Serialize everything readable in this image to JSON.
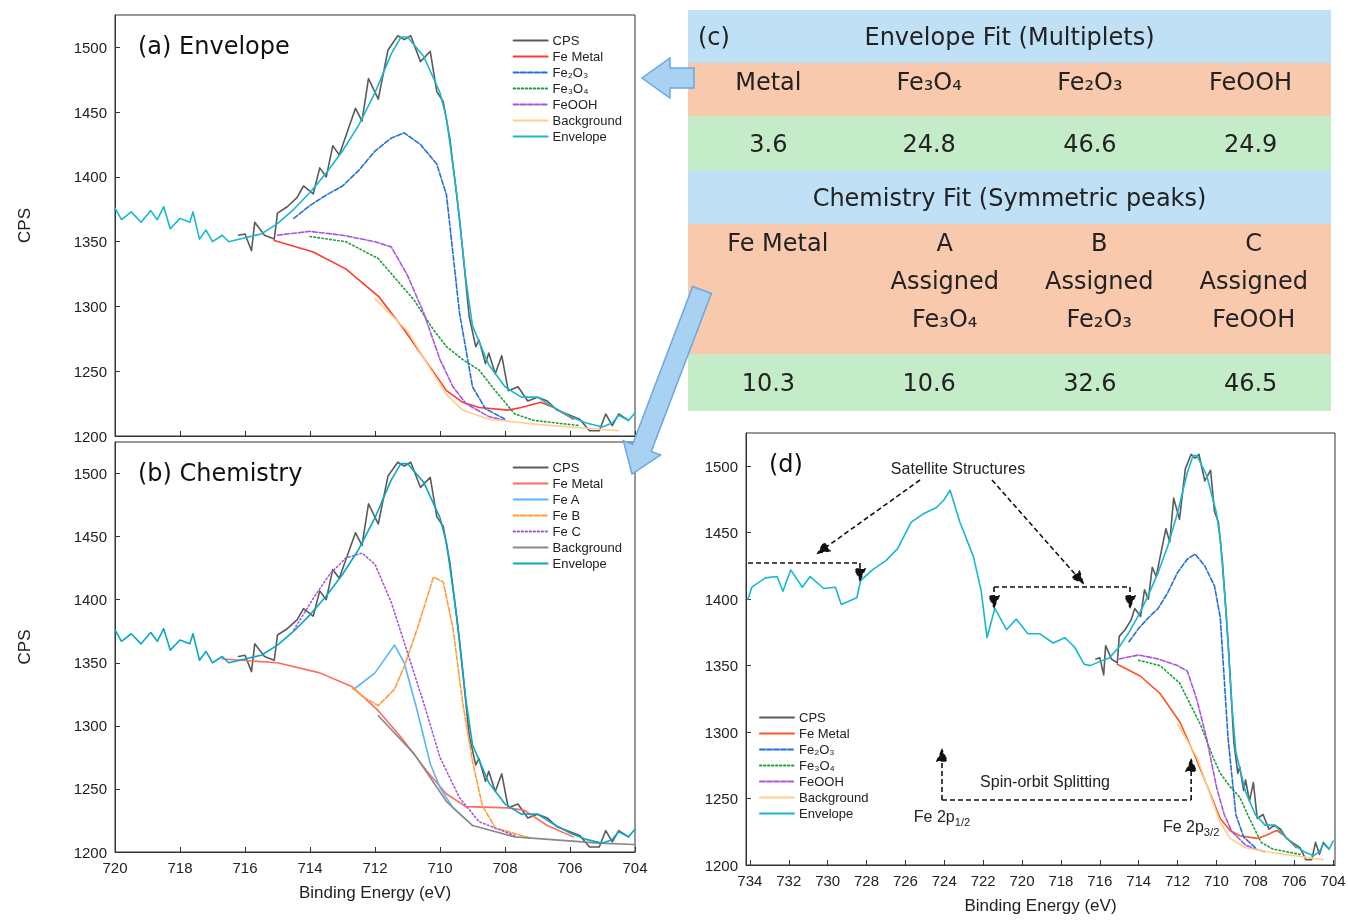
{
  "chart_data": [
    {
      "type": "line",
      "title": "(a) Envelope",
      "ylabel": "CPS",
      "xlim": [
        720,
        704
      ],
      "ylim": [
        1200,
        1525
      ],
      "xticks": [
        720,
        718,
        716,
        714,
        712,
        710,
        708,
        706,
        704
      ],
      "yticks": [
        1200,
        1250,
        1300,
        1350,
        1400,
        1450,
        1500
      ],
      "tick_labels": "y",
      "legend": "top right",
      "series": [
        {
          "name": "CPS",
          "color": "#5a5a5a",
          "line_style": "solid",
          "x": [
            716.2,
            716,
            715.8,
            715.7,
            715.4,
            715.1,
            715,
            714.7,
            714.4,
            714.2,
            713.9,
            713.7,
            713.5,
            713.3,
            713.1,
            712.6,
            712.4,
            712.2,
            711.9,
            711.6,
            711.3,
            711.1,
            710.9,
            710.6,
            710.3,
            710.1,
            709.9,
            709.7,
            709.4,
            709.1,
            708.9,
            708.8,
            708.6,
            708.5,
            708.3,
            708.1,
            707.9,
            707.6,
            707.3,
            707,
            706.7,
            706.4,
            706.1,
            705.7,
            705.4,
            705.1,
            704.9,
            704.7,
            704.5,
            704.2
          ],
          "values": [
            1355,
            1356,
            1343,
            1365,
            1355,
            1352,
            1372,
            1377,
            1384,
            1393,
            1387,
            1407,
            1400,
            1424,
            1417,
            1453,
            1443,
            1476,
            1460,
            1498,
            1509,
            1506,
            1509,
            1489,
            1497,
            1466,
            1458,
            1430,
            1368,
            1292,
            1269,
            1274,
            1256,
            1264,
            1248,
            1262,
            1235,
            1238,
            1227,
            1230,
            1227,
            1220,
            1217,
            1213,
            1204,
            1204,
            1217,
            1208,
            1217,
            1212
          ]
        },
        {
          "name": "Fe Metal",
          "color": "#ff3b30",
          "line_style": "solid",
          "x": [
            715.1,
            713.9,
            712.9,
            711.9,
            711.1,
            710.3,
            709.8,
            709.3,
            708.8,
            707.9,
            707.5,
            706.9,
            706.5,
            705.9
          ],
          "values": [
            1351,
            1342,
            1329,
            1308,
            1282,
            1253,
            1235,
            1226,
            1222,
            1220,
            1222,
            1226,
            1222,
            1213
          ]
        },
        {
          "name": "Fe₂O₃",
          "color": "#1f6fe0",
          "line_style": "dashed",
          "x": [
            714.5,
            714,
            713.5,
            713,
            712.5,
            712,
            711.5,
            711.1,
            710.6,
            710.1,
            709.8,
            709.4,
            709,
            708.6,
            708
          ],
          "values": [
            1368,
            1378,
            1386,
            1393,
            1405,
            1420,
            1430,
            1434,
            1425,
            1410,
            1386,
            1295,
            1238,
            1221,
            1213
          ]
        },
        {
          "name": "Fe₃O₄",
          "color": "#1a9e3a",
          "line_style": "dotted",
          "x": [
            714,
            712.9,
            711.9,
            710.8,
            710.2,
            709.8,
            709.3,
            708.8,
            708.3,
            707.7,
            707.1,
            705.7
          ],
          "values": [
            1354,
            1350,
            1337,
            1305,
            1282,
            1269,
            1259,
            1251,
            1235,
            1217,
            1212,
            1208
          ]
        },
        {
          "name": "FeOOH",
          "color": "#a855e0",
          "line_style": "dashed",
          "x": [
            715,
            714,
            713,
            712,
            711.5,
            711,
            710.5,
            710,
            709.6,
            709.2,
            708.5,
            708
          ],
          "values": [
            1355,
            1358,
            1355,
            1350,
            1346,
            1324,
            1295,
            1259,
            1238,
            1225,
            1215,
            1212
          ]
        },
        {
          "name": "Background",
          "color": "#ffcf8a",
          "line_style": "solid",
          "x": [
            712,
            711,
            710.3,
            709.8,
            709.3,
            708.5,
            707,
            705,
            704.5
          ],
          "values": [
            1306,
            1281,
            1252,
            1232,
            1220,
            1213,
            1209,
            1205,
            1204
          ]
        },
        {
          "name": "Envelope",
          "color": "#17b8d0",
          "line_style": "solid",
          "x": [
            720,
            719.8,
            719.5,
            719.2,
            718.9,
            718.7,
            718.5,
            718.3,
            718,
            717.7,
            717.6,
            717.4,
            717.2,
            717,
            716.7,
            716.5,
            716,
            715.5,
            715,
            714.5,
            714,
            713.5,
            713,
            712.5,
            712,
            711.5,
            711.2,
            711,
            710.5,
            710,
            709.8,
            709.5,
            709.2,
            709,
            708.5,
            708,
            707.5,
            707,
            706.5,
            706,
            705.5,
            705,
            704.7,
            704.5,
            704.2,
            704
          ],
          "values": [
            1376,
            1367,
            1373,
            1365,
            1374,
            1367,
            1377,
            1360,
            1368,
            1365,
            1373,
            1352,
            1359,
            1350,
            1355,
            1350,
            1353,
            1356,
            1364,
            1375,
            1388,
            1403,
            1420,
            1440,
            1465,
            1495,
            1508,
            1508,
            1493,
            1465,
            1445,
            1390,
            1320,
            1285,
            1255,
            1238,
            1230,
            1230,
            1222,
            1215,
            1210,
            1207,
            1210,
            1216,
            1212,
            1218
          ]
        }
      ]
    },
    {
      "type": "other",
      "title": "Envelope Fit (Multiplets)",
      "annotations": [
        "(c)"
      ],
      "categories": [
        "Metal",
        "Fe₃O₄",
        "Fe₂O₃",
        "FeOOH"
      ],
      "values": [
        3.6,
        24.8,
        46.6,
        24.9
      ],
      "data_labels": true
    },
    {
      "type": "other",
      "title": "Chemistry Fit (Symmetric peaks)",
      "categories": [
        "Fe Metal",
        "A Assigned Fe₃O₄",
        "B Assigned Fe₂O₃",
        "C Assigned FeOOH"
      ],
      "values": [
        10.3,
        10.6,
        32.6,
        46.5
      ],
      "data_labels": true
    },
    {
      "type": "line",
      "title": "(b) Chemistry",
      "xlabel": "Binding Energy (eV)",
      "ylabel": "CPS",
      "xlim": [
        720,
        704
      ],
      "ylim": [
        1200,
        1525
      ],
      "xticks": [
        720,
        718,
        716,
        714,
        712,
        710,
        708,
        706,
        704
      ],
      "yticks": [
        1200,
        1250,
        1300,
        1350,
        1400,
        1450,
        1500
      ],
      "legend": "top right",
      "series": [
        {
          "name": "CPS",
          "color": "#5a5a5a",
          "line_style": "solid",
          "x": [
            716.2,
            716,
            715.8,
            715.7,
            715.4,
            715.1,
            715,
            714.7,
            714.4,
            714.2,
            713.9,
            713.7,
            713.5,
            713.3,
            713.1,
            712.6,
            712.4,
            712.2,
            711.9,
            711.6,
            711.3,
            711.1,
            710.9,
            710.6,
            710.3,
            710.1,
            709.9,
            709.7,
            709.4,
            709.1,
            708.9,
            708.8,
            708.6,
            708.5,
            708.3,
            708.1,
            707.9,
            707.6,
            707.3,
            707,
            706.7,
            706.4,
            706.1,
            705.7,
            705.4,
            705.1,
            704.9,
            704.7,
            704.5,
            704.2
          ],
          "values": [
            1355,
            1356,
            1343,
            1365,
            1355,
            1352,
            1372,
            1377,
            1384,
            1393,
            1387,
            1407,
            1400,
            1424,
            1417,
            1453,
            1443,
            1476,
            1460,
            1498,
            1509,
            1506,
            1509,
            1489,
            1497,
            1466,
            1458,
            1430,
            1368,
            1292,
            1269,
            1274,
            1256,
            1264,
            1248,
            1262,
            1235,
            1238,
            1227,
            1230,
            1227,
            1220,
            1217,
            1213,
            1204,
            1204,
            1217,
            1208,
            1217,
            1212
          ]
        },
        {
          "name": "Fe Metal",
          "color": "#ff6b5e",
          "line_style": "solid",
          "x": [
            716.7,
            715,
            713.7,
            712.7,
            711.9,
            711.2,
            710.4,
            709.8,
            709.2,
            707.9,
            707.4,
            706.7,
            705.9
          ],
          "values": [
            1353,
            1350,
            1342,
            1331,
            1312,
            1291,
            1264,
            1246,
            1236,
            1235,
            1233,
            1221,
            1212
          ]
        },
        {
          "name": "Fe A",
          "color": "#5ab4ff",
          "line_style": "solid",
          "x": [
            712.6,
            712,
            711.4,
            711.1,
            710.7,
            710.3,
            710,
            709.6,
            709
          ],
          "values": [
            1330,
            1342,
            1364,
            1350,
            1312,
            1270,
            1251,
            1235,
            1221
          ]
        },
        {
          "name": "Fe B",
          "color": "#ff9d3c",
          "line_style": "dashed",
          "x": [
            712.7,
            712.3,
            711.9,
            711.4,
            711.1,
            710.7,
            710.2,
            709.9,
            709.6,
            709.3,
            709,
            708.7,
            708.3,
            707.2
          ],
          "values": [
            1330,
            1322,
            1316,
            1329,
            1347,
            1377,
            1418,
            1414,
            1377,
            1318,
            1272,
            1237,
            1219,
            1211
          ]
        },
        {
          "name": "Fe C",
          "color": "#a855e0",
          "line_style": "dotted",
          "x": [
            714.5,
            713.9,
            713.4,
            712.9,
            712.4,
            712,
            711.5,
            711.1,
            710.5,
            710,
            709.4,
            708.8,
            707.7
          ],
          "values": [
            1376,
            1401,
            1420,
            1433,
            1437,
            1428,
            1398,
            1366,
            1318,
            1275,
            1243,
            1224,
            1213
          ]
        },
        {
          "name": "Background",
          "color": "#888888",
          "line_style": "solid",
          "x": [
            711.9,
            710.8,
            709.8,
            709,
            707.7,
            705.1,
            704
          ],
          "values": [
            1308,
            1278,
            1240,
            1221,
            1212,
            1207,
            1206
          ]
        },
        {
          "name": "Envelope",
          "color": "#0aa7c7",
          "line_style": "solid",
          "x": [
            720,
            719.8,
            719.5,
            719.2,
            718.9,
            718.7,
            718.5,
            718.3,
            718,
            717.7,
            717.6,
            717.4,
            717.2,
            717,
            716.7,
            716.5,
            716,
            715.5,
            715,
            714.5,
            714,
            713.5,
            713,
            712.5,
            712,
            711.5,
            711.2,
            711,
            710.5,
            710,
            709.8,
            709.5,
            709.2,
            709,
            708.5,
            708,
            707.5,
            707,
            706.5,
            706,
            705.5,
            705,
            704.7,
            704.5,
            704.2,
            704
          ],
          "values": [
            1376,
            1367,
            1373,
            1365,
            1374,
            1367,
            1377,
            1360,
            1368,
            1365,
            1373,
            1352,
            1359,
            1350,
            1355,
            1350,
            1353,
            1356,
            1364,
            1375,
            1388,
            1403,
            1420,
            1440,
            1465,
            1495,
            1508,
            1508,
            1493,
            1465,
            1445,
            1390,
            1320,
            1285,
            1255,
            1238,
            1230,
            1230,
            1222,
            1215,
            1210,
            1207,
            1210,
            1216,
            1212,
            1218
          ]
        }
      ]
    },
    {
      "type": "line",
      "title": "(d)",
      "xlabel": "Binding Energy (eV)",
      "xlim": [
        734.2,
        703.9
      ],
      "ylim": [
        1200,
        1525
      ],
      "xticks": [
        734,
        732,
        730,
        728,
        726,
        724,
        722,
        720,
        718,
        716,
        714,
        712,
        710,
        708,
        706,
        704
      ],
      "yticks": [
        1200,
        1250,
        1300,
        1350,
        1400,
        1450,
        1500
      ],
      "legend": "bottom left",
      "annotations": [
        "Satellite Structures",
        "Spin-orbit Splitting",
        "Fe 2p$_{1/2}$",
        {
          "text": "Fe 2p$_{3/2}$",
          "x": 711.3,
          "y": 1279
        }
      ],
      "series": [
        {
          "name": "CPS",
          "color": "#5a5a5a",
          "line_style": "solid",
          "x": [
            716.2,
            716,
            715.8,
            715.7,
            715.4,
            715.1,
            715,
            714.7,
            714.4,
            714.2,
            713.9,
            713.7,
            713.5,
            713.3,
            713.1,
            712.6,
            712.4,
            712.2,
            711.9,
            711.6,
            711.3,
            711.1,
            710.9,
            710.6,
            710.3,
            710.1,
            709.9,
            709.7,
            709.4,
            709.1,
            708.9,
            708.8,
            708.6,
            708.5,
            708.3,
            708.1,
            707.9,
            707.6,
            707.3,
            707,
            706.7,
            706.4,
            706.1,
            705.7,
            705.4,
            705.1,
            704.9,
            704.7,
            704.5,
            704.2
          ],
          "values": [
            1355,
            1356,
            1343,
            1365,
            1355,
            1352,
            1372,
            1377,
            1384,
            1393,
            1387,
            1407,
            1400,
            1424,
            1417,
            1453,
            1443,
            1476,
            1460,
            1498,
            1509,
            1506,
            1509,
            1489,
            1497,
            1466,
            1458,
            1430,
            1368,
            1292,
            1269,
            1274,
            1256,
            1264,
            1248,
            1262,
            1235,
            1238,
            1227,
            1230,
            1227,
            1220,
            1217,
            1213,
            1204,
            1204,
            1217,
            1208,
            1217,
            1212
          ]
        },
        {
          "name": "Fe Metal",
          "color": "#ff5522",
          "line_style": "solid",
          "x": [
            715.1,
            713.9,
            712.9,
            711.9,
            711.1,
            710.3,
            709.8,
            709.3,
            708.8,
            707.9,
            707.5,
            706.9,
            706.5,
            705.9
          ],
          "values": [
            1351,
            1342,
            1329,
            1308,
            1282,
            1253,
            1235,
            1226,
            1222,
            1220,
            1222,
            1226,
            1222,
            1213
          ]
        },
        {
          "name": "Fe₂O₃",
          "color": "#1f6fe0",
          "line_style": "dashed",
          "x": [
            714.5,
            714,
            713.5,
            713,
            712.5,
            712,
            711.5,
            711.1,
            710.6,
            710.1,
            709.8,
            709.4,
            709,
            708.6,
            708
          ],
          "values": [
            1368,
            1378,
            1386,
            1393,
            1405,
            1420,
            1430,
            1434,
            1425,
            1410,
            1386,
            1295,
            1238,
            1221,
            1213
          ]
        },
        {
          "name": "Fe₃O₄",
          "color": "#1a9e3a",
          "line_style": "dotted",
          "x": [
            714,
            712.9,
            711.9,
            710.8,
            710.2,
            709.8,
            709.3,
            708.8,
            708.3,
            707.7,
            707.1,
            705.7
          ],
          "values": [
            1354,
            1350,
            1337,
            1305,
            1282,
            1269,
            1259,
            1251,
            1235,
            1217,
            1212,
            1208
          ]
        },
        {
          "name": "FeOOH",
          "color": "#a855e0",
          "line_style": "dashed",
          "x": [
            715,
            714,
            713,
            712,
            711.5,
            711,
            710.5,
            710,
            709.6,
            709.2,
            708.5,
            708,
            707.5
          ],
          "values": [
            1355,
            1358,
            1355,
            1350,
            1346,
            1324,
            1295,
            1259,
            1238,
            1225,
            1215,
            1212,
            1210
          ]
        },
        {
          "name": "Background",
          "color": "#ffcf8a",
          "line_style": "solid",
          "x": [
            712,
            711,
            710.3,
            709.8,
            709.3,
            708.5,
            707,
            705,
            704.5
          ],
          "values": [
            1306,
            1281,
            1252,
            1232,
            1220,
            1213,
            1209,
            1205,
            1204
          ]
        },
        {
          "name": "Envelope",
          "color": "#17b8d0",
          "line_style": "solid",
          "x": [
            734.1,
            733.9,
            733.2,
            732.6,
            732.3,
            731.9,
            731.3,
            730.9,
            730.2,
            729.6,
            729.3,
            728.5,
            728.3,
            727.7,
            727,
            726.4,
            725.7,
            725.1,
            724.4,
            724,
            723.7,
            723.2,
            722.5,
            722.1,
            721.8,
            721.4,
            720.8,
            720.3,
            719.7,
            719.1,
            718.4,
            717.8,
            717.3,
            716.8,
            716.5,
            716,
            715.5,
            715,
            714.5,
            714,
            713.5,
            713,
            712.5,
            712,
            711.5,
            711.2,
            711,
            710.5,
            710,
            709.8,
            709.5,
            709.2,
            709,
            708.5,
            708,
            707.5,
            707,
            706.5,
            706,
            705.5,
            705,
            704.7,
            704.5,
            704.2,
            704
          ],
          "values": [
            1400,
            1409,
            1416,
            1417,
            1406,
            1422,
            1409,
            1417,
            1408,
            1409,
            1396,
            1401,
            1414,
            1422,
            1429,
            1438,
            1458,
            1464,
            1469,
            1475,
            1482,
            1458,
            1432,
            1406,
            1371,
            1393,
            1377,
            1385,
            1374,
            1374,
            1367,
            1371,
            1364,
            1351,
            1350,
            1353,
            1356,
            1364,
            1375,
            1388,
            1403,
            1420,
            1440,
            1465,
            1495,
            1508,
            1508,
            1493,
            1465,
            1445,
            1390,
            1320,
            1285,
            1255,
            1238,
            1230,
            1230,
            1222,
            1215,
            1210,
            1207,
            1210,
            1216,
            1212,
            1218
          ]
        }
      ]
    }
  ]
}
